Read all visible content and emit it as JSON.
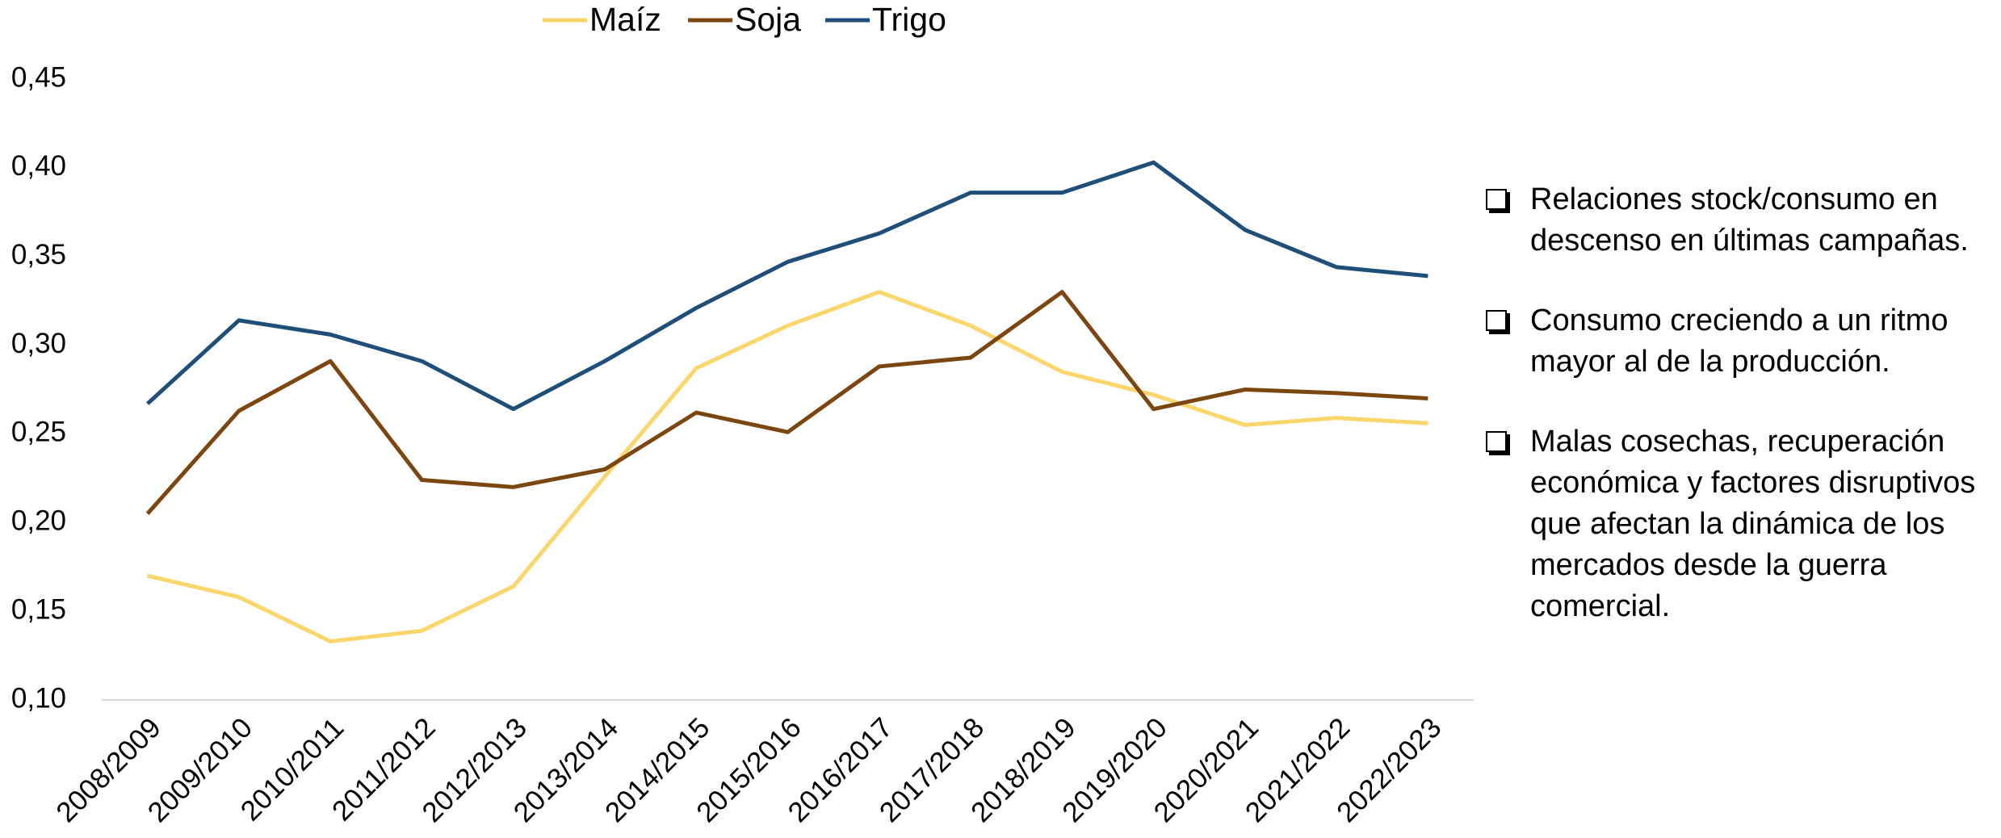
{
  "chart_data": {
    "type": "line",
    "categories": [
      "2008/2009",
      "2009/2010",
      "2010/2011",
      "2011/2012",
      "2012/2013",
      "2013/2014",
      "2014/2015",
      "2015/2016",
      "2016/2017",
      "2017/2018",
      "2018/2019",
      "2019/2020",
      "2020/2021",
      "2021/2022",
      "2022/2023"
    ],
    "series": [
      {
        "name": "Maíz",
        "color": "#fbd66c",
        "values": [
          0.17,
          0.158,
          0.133,
          0.139,
          0.164,
          0.226,
          0.287,
          0.311,
          0.33,
          0.311,
          0.285,
          0.272,
          0.255,
          0.259,
          0.256
        ]
      },
      {
        "name": "Soja",
        "color": "#7b460f",
        "values": [
          0.205,
          0.263,
          0.291,
          0.224,
          0.22,
          0.23,
          0.262,
          0.251,
          0.288,
          0.293,
          0.33,
          0.264,
          0.275,
          0.273,
          0.27
        ]
      },
      {
        "name": "Trigo",
        "color": "#1f4e79",
        "values": [
          0.267,
          0.314,
          0.306,
          0.291,
          0.264,
          0.291,
          0.321,
          0.347,
          0.363,
          0.386,
          0.386,
          0.403,
          0.365,
          0.344,
          0.339
        ]
      }
    ],
    "ylim": [
      0.1,
      0.45
    ],
    "yticks": [
      {
        "value": 0.1,
        "label": "0,10"
      },
      {
        "value": 0.15,
        "label": "0,15"
      },
      {
        "value": 0.2,
        "label": "0,20"
      },
      {
        "value": 0.25,
        "label": "0,25"
      },
      {
        "value": 0.3,
        "label": "0,30"
      },
      {
        "value": 0.35,
        "label": "0,35"
      },
      {
        "value": 0.4,
        "label": "0,40"
      },
      {
        "value": 0.45,
        "label": "0,45"
      }
    ],
    "grid": false,
    "legend": "top",
    "annotations": [
      "Relaciones stock/consumo en descenso en últimas campañas.",
      "Consumo creciendo a un ritmo mayor al de la producción.",
      "Malas cosechas, recuperación económica y factores disruptivos que afectan la dinámica de los mercados desde la guerra comercial."
    ]
  }
}
